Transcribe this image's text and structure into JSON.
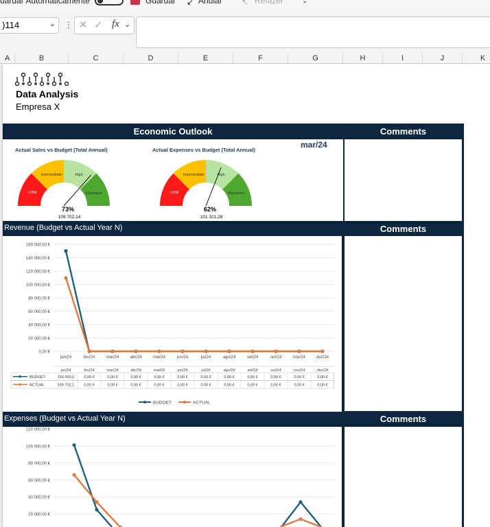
{
  "toolbar": {
    "autosave_label": "uardar Automaticamente",
    "save_label": "Guardar",
    "undo_label": "Anular",
    "redo_label": "Refazer"
  },
  "formula_bar": {
    "name_box": ")114",
    "fx_label": "fx"
  },
  "columns": [
    "A",
    "B",
    "C",
    "D",
    "E",
    "F",
    "G",
    "H",
    "I",
    "J",
    "K"
  ],
  "header": {
    "title": "Data Analysis",
    "company": "Empresa X"
  },
  "outlook": {
    "title": "Economic Outlook",
    "comments_label": "Comments",
    "period": "mar/24"
  },
  "gauges": [
    {
      "title": "Actual Sales vs Budget (Total Annual)",
      "percent_label": "73%",
      "value_label": "109 702,14",
      "needle_fraction": 0.73,
      "bands": [
        "LOW",
        "Intermediate",
        "High",
        "Maximum"
      ]
    },
    {
      "title": "Actual Expenses vs Budget (Total Annual)",
      "percent_label": "62%",
      "value_label": "101 321,28",
      "needle_fraction": 0.62,
      "bands": [
        "LOW",
        "Intermediate",
        "High",
        "Maximum"
      ]
    }
  ],
  "revenue": {
    "section_title": "Revenue (Budget vs Actual Year N)",
    "comments_label": "Comments",
    "chart_data": {
      "type": "line",
      "categories": [
        "jan/24",
        "fev/24",
        "mar/24",
        "abr/24",
        "mai/24",
        "jun/24",
        "jul/24",
        "ago/24",
        "set/24",
        "out/24",
        "nov/24",
        "dez/24"
      ],
      "y_ticks": [
        "0,00 €",
        "20 000,00 €",
        "40 000,00 €",
        "60 000,00 €",
        "80 000,00 €",
        "100 000,00 €",
        "120 000,00 €",
        "140 000,00 €",
        "160 000,00 €"
      ],
      "ylim": [
        0,
        160000
      ],
      "series": [
        {
          "name": "BUDGET",
          "color": "#1f5f7f",
          "values": [
            150000,
            0,
            0,
            0,
            0,
            0,
            0,
            0,
            0,
            0,
            0,
            0
          ]
        },
        {
          "name": "ACTUAL",
          "color": "#e07a3c",
          "values": [
            109702.1,
            0,
            0,
            0,
            0,
            0,
            0,
            0,
            0,
            0,
            0,
            0
          ]
        }
      ],
      "table_rows": [
        {
          "name": "BUDGET",
          "cells": [
            "150 000,0",
            "0,00 €",
            "0,00 €",
            "0,00 €",
            "0,00 €",
            "0,00 €",
            "0,00 €",
            "0,00 €",
            "0,00 €",
            "0,00 €",
            "0,00 €",
            "0,00 €"
          ]
        },
        {
          "name": "ACTUAL",
          "cells": [
            "109 702,1",
            "0,00 €",
            "0,00 €",
            "0,00 €",
            "0,00 €",
            "0,00 €",
            "0,00 €",
            "0,00 €",
            "0,00 €",
            "0,00 €",
            "0,00 €",
            "0,00 €"
          ]
        }
      ],
      "legend": [
        "BUDGET",
        "ACTUAL"
      ]
    }
  },
  "expenses": {
    "section_title": "Expenses (Budget vs Actual Year N)",
    "comments_label": "Comments",
    "chart_data": {
      "type": "line",
      "y_ticks": [
        "20 000,00 €",
        "40 000,00 €",
        "60 000,00 €",
        "80 000,00 €",
        "100 000,00 €",
        "120 000,00 €"
      ],
      "ylim": [
        0,
        120000
      ],
      "series": [
        {
          "name": "BUDGET",
          "color": "#1f5f7f",
          "values": [
            101000,
            25000,
            null,
            null,
            null,
            null,
            null,
            null,
            null,
            null,
            34000,
            null
          ]
        },
        {
          "name": "ACTUAL",
          "color": "#e07a3c",
          "values": [
            66000,
            34000,
            null,
            null,
            null,
            null,
            null,
            null,
            null,
            null,
            14000,
            null
          ]
        }
      ]
    }
  }
}
